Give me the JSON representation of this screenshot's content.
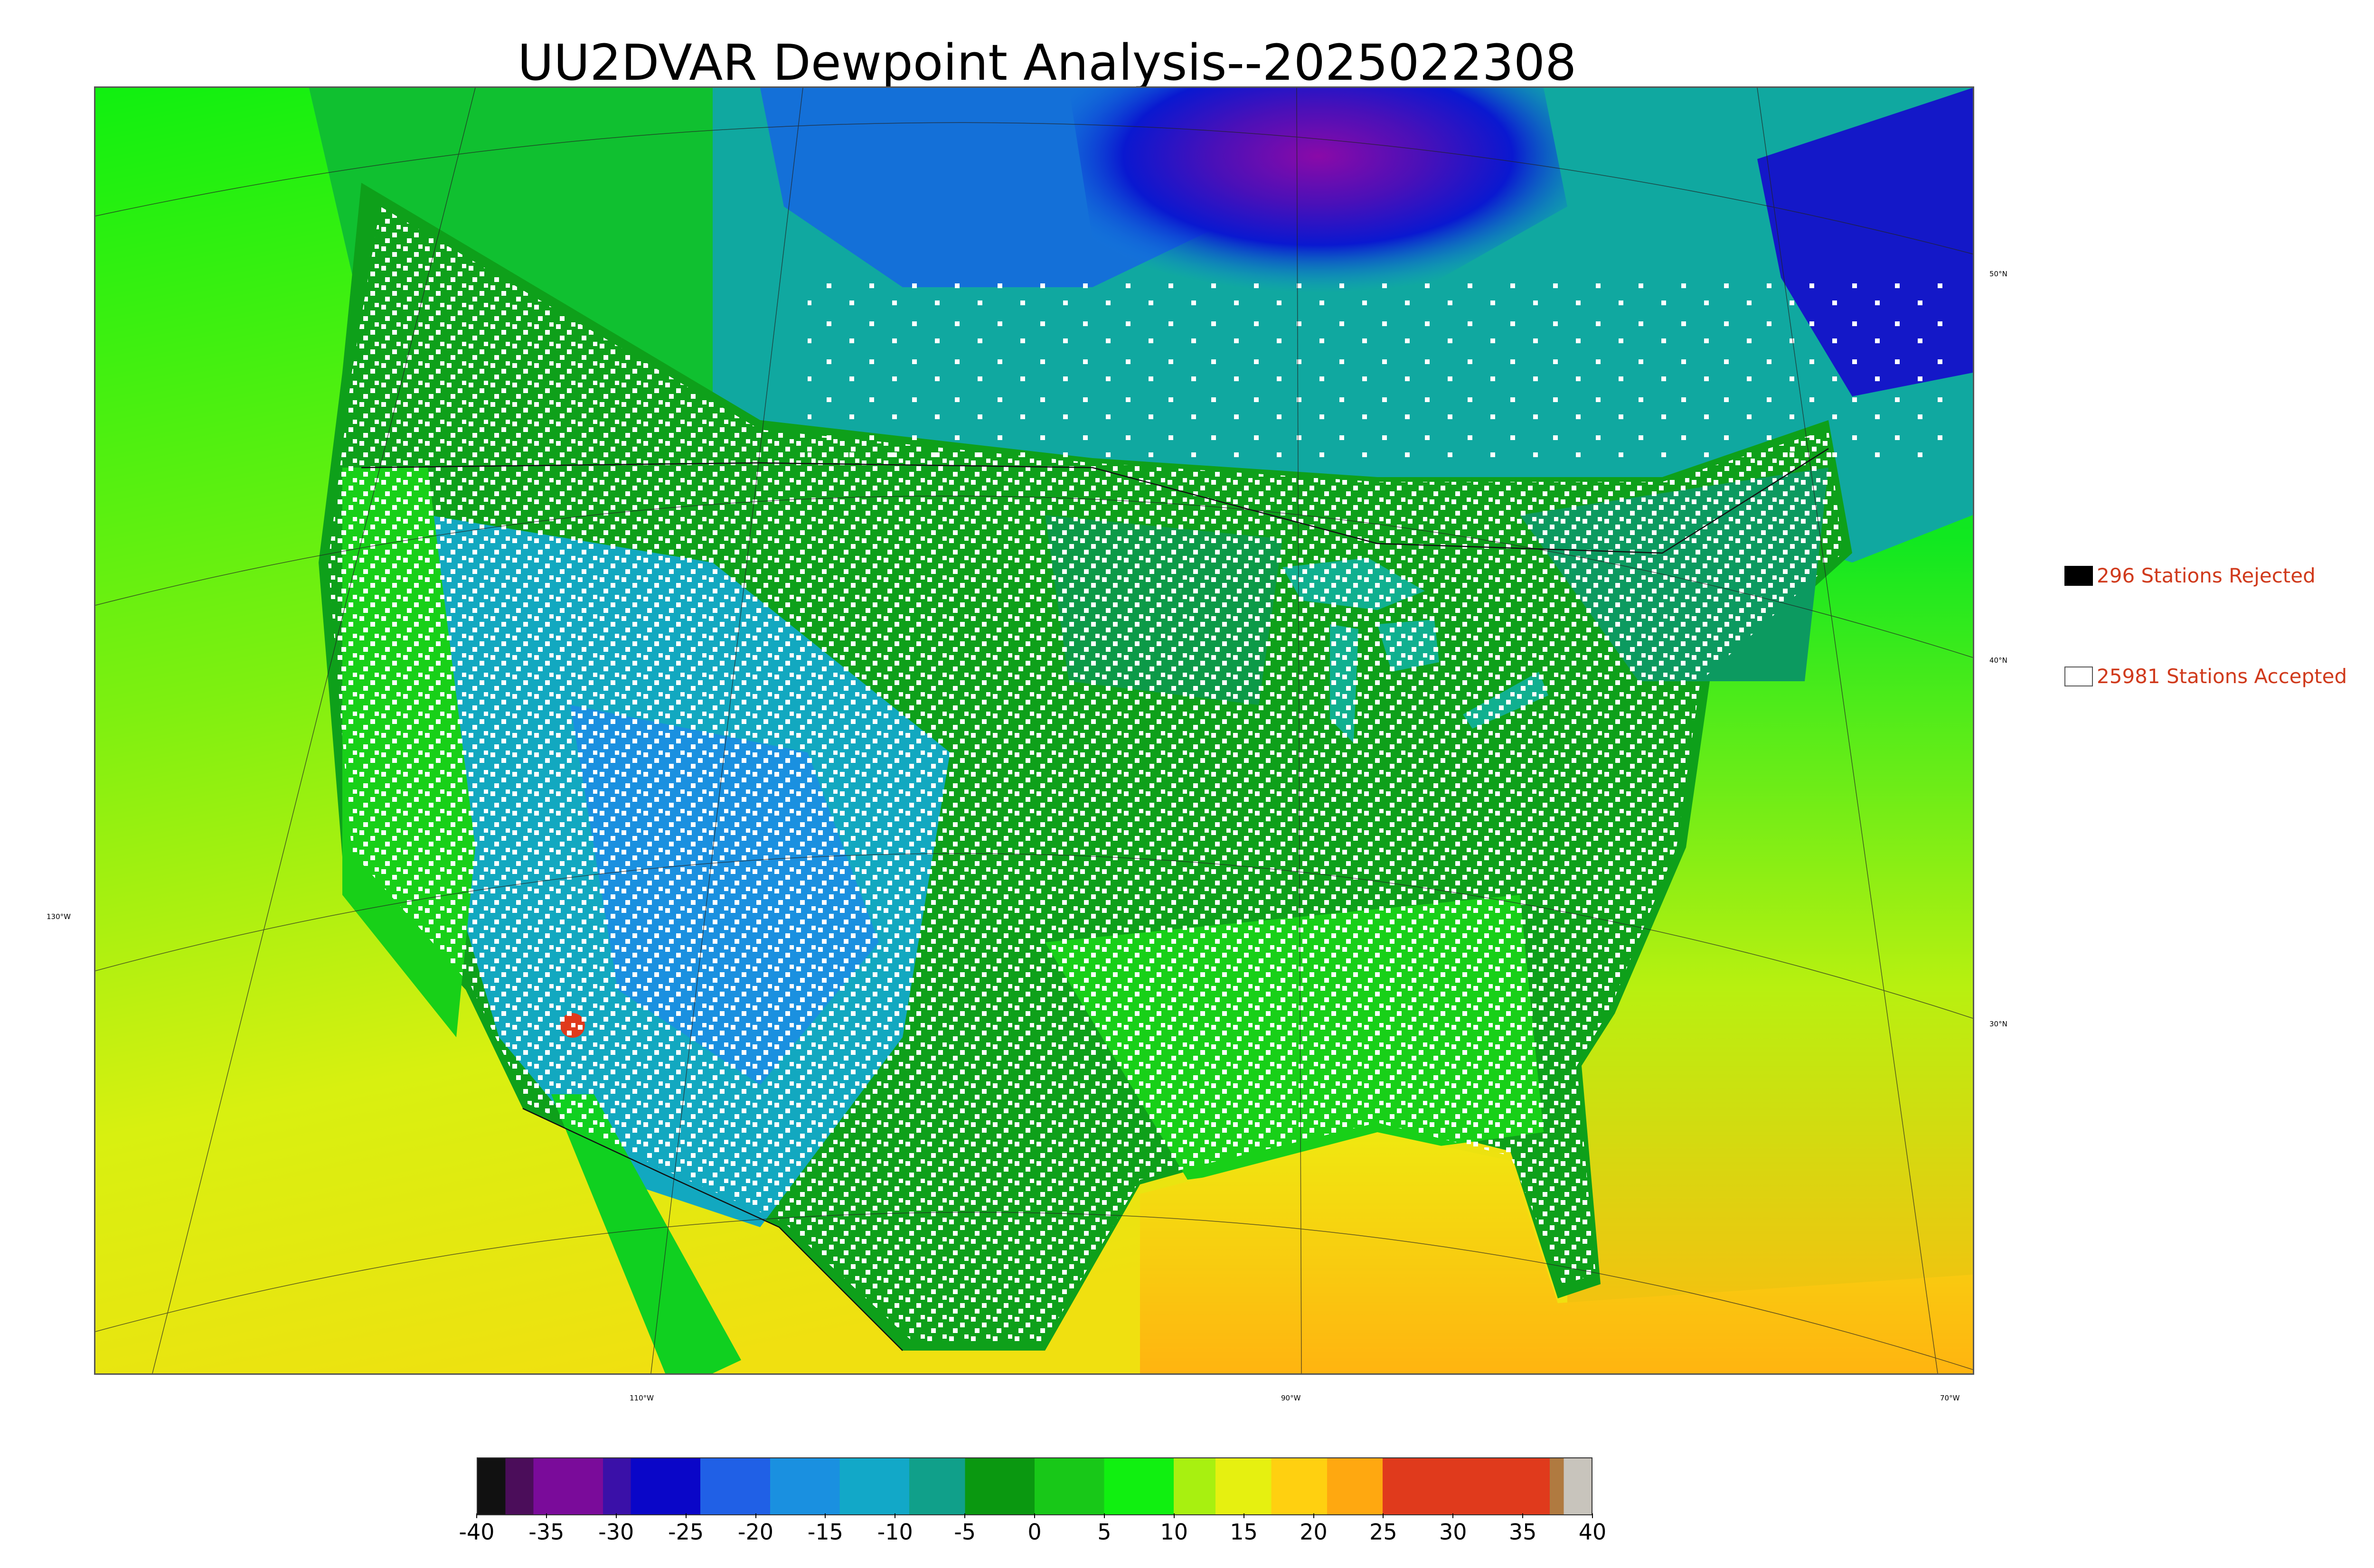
{
  "title": "UU2DVAR Dewpoint Analysis--2025022308",
  "map": {
    "lat_labels": [
      "50°N",
      "40°N",
      "30°N"
    ],
    "lon_labels": [
      "130°W",
      "110°W",
      "90°W",
      "70°W"
    ]
  },
  "legend": {
    "rejected": {
      "label": "296 Stations Rejected",
      "swatch_color": "#000000"
    },
    "accepted": {
      "label": "25981 Stations Accepted",
      "swatch_color": "#ffffff"
    }
  },
  "colorbar": {
    "min": -40,
    "max": 40,
    "tick_labels": [
      "-40",
      "-35",
      "-30",
      "-25",
      "-20",
      "-15",
      "-10",
      "-5",
      "0",
      "5",
      "10",
      "15",
      "20",
      "25",
      "30",
      "35",
      "40"
    ],
    "colors": [
      {
        "from": -40,
        "to": -38,
        "color": "#111111"
      },
      {
        "from": -38,
        "to": -36,
        "color": "#4b0d5a"
      },
      {
        "from": -36,
        "to": -31,
        "color": "#7a0b9a"
      },
      {
        "from": -31,
        "to": -29,
        "color": "#3a10a8"
      },
      {
        "from": -29,
        "to": -24,
        "color": "#0a06c8"
      },
      {
        "from": -24,
        "to": -19,
        "color": "#2060e6"
      },
      {
        "from": -19,
        "to": -14,
        "color": "#1a90e0"
      },
      {
        "from": -14,
        "to": -9,
        "color": "#12a8c8"
      },
      {
        "from": -9,
        "to": -5,
        "color": "#10a08a"
      },
      {
        "from": -5,
        "to": 0,
        "color": "#0a9810"
      },
      {
        "from": 0,
        "to": 5,
        "color": "#18c818"
      },
      {
        "from": 5,
        "to": 10,
        "color": "#10f010"
      },
      {
        "from": 10,
        "to": 13,
        "color": "#a8f010"
      },
      {
        "from": 13,
        "to": 17,
        "color": "#e6f010"
      },
      {
        "from": 17,
        "to": 21,
        "color": "#ffd010"
      },
      {
        "from": 21,
        "to": 25,
        "color": "#ffa810"
      },
      {
        "from": 25,
        "to": 37,
        "color": "#e03a1c"
      },
      {
        "from": 37,
        "to": 38,
        "color": "#b07a40"
      },
      {
        "from": 38,
        "to": 40,
        "color": "#c8c4bc"
      }
    ]
  }
}
